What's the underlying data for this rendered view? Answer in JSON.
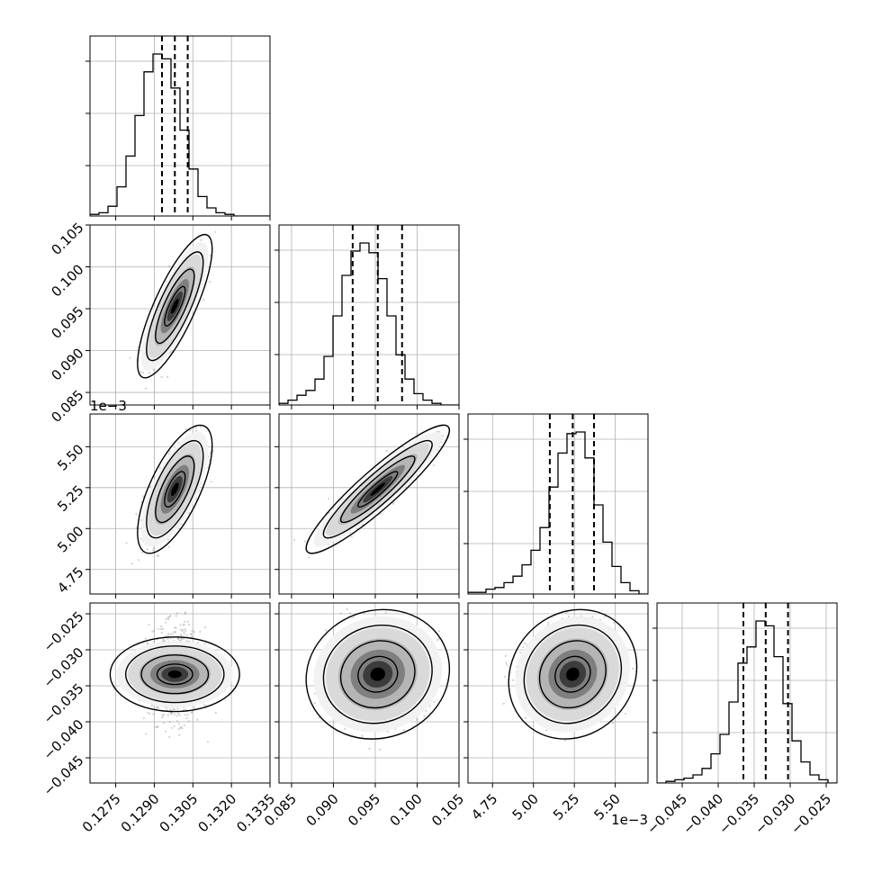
{
  "chart_data": {
    "type": "corner",
    "title": "",
    "parameters": [
      {
        "range": [
          0.1265,
          0.1335
        ],
        "median": 0.1298,
        "lower": 0.1293,
        "upper": 0.1303,
        "ticks": [
          0.1275,
          0.129,
          0.1305,
          0.132,
          0.1335
        ],
        "tick_labels": [
          "0.1275",
          "0.1290",
          "0.1305",
          "0.1320",
          "0.1335"
        ],
        "offset_label": ""
      },
      {
        "range": [
          0.0835,
          0.105
        ],
        "median": 0.0953,
        "lower": 0.0923,
        "upper": 0.0982,
        "ticks": [
          0.085,
          0.09,
          0.095,
          0.1,
          0.105
        ],
        "tick_labels": [
          "0.085",
          "0.090",
          "0.095",
          "0.100",
          "0.105"
        ],
        "offset_label": ""
      },
      {
        "range": [
          4.6,
          5.7
        ],
        "median": 5.24,
        "lower": 5.1,
        "upper": 5.37,
        "ticks": [
          4.75,
          5.0,
          5.25,
          5.5
        ],
        "tick_labels": [
          "4.75",
          "5.00",
          "5.25",
          "5.50"
        ],
        "offset_label": "1e−3"
      },
      {
        "range": [
          -0.0485,
          -0.0235
        ],
        "median": -0.0334,
        "lower": -0.0365,
        "upper": -0.0303,
        "ticks": [
          -0.045,
          -0.04,
          -0.035,
          -0.03,
          -0.025
        ],
        "tick_labels": [
          "−0.045",
          "−0.040",
          "−0.035",
          "−0.030",
          "−0.025"
        ],
        "offset_label": ""
      }
    ],
    "correlations": [
      {
        "i": 1,
        "j": 0,
        "rho": 0.8
      },
      {
        "i": 2,
        "j": 0,
        "rho": 0.68
      },
      {
        "i": 2,
        "j": 1,
        "rho": 0.92
      },
      {
        "i": 3,
        "j": 0,
        "rho": 0.0
      },
      {
        "i": 3,
        "j": 1,
        "rho": 0.08
      },
      {
        "i": 3,
        "j": 2,
        "rho": 0.12
      }
    ],
    "histograms": [
      {
        "param": 0,
        "heights": [
          0.01,
          0.02,
          0.06,
          0.18,
          0.37,
          0.62,
          0.89,
          1.0,
          0.97,
          0.79,
          0.53,
          0.29,
          0.12,
          0.05,
          0.02,
          0.01,
          0.0,
          0.0,
          0.0,
          0.0
        ]
      },
      {
        "param": 1,
        "heights": [
          0.01,
          0.03,
          0.06,
          0.09,
          0.16,
          0.3,
          0.55,
          0.8,
          0.95,
          1.0,
          0.94,
          0.78,
          0.55,
          0.31,
          0.16,
          0.07,
          0.03,
          0.01,
          0.0,
          0.0
        ]
      },
      {
        "param": 2,
        "heights": [
          0.01,
          0.01,
          0.03,
          0.04,
          0.07,
          0.11,
          0.18,
          0.27,
          0.41,
          0.66,
          0.87,
          0.99,
          1.0,
          0.84,
          0.55,
          0.32,
          0.17,
          0.07,
          0.02,
          0.0
        ]
      },
      {
        "param": 3,
        "heights": [
          0.0,
          0.01,
          0.02,
          0.03,
          0.05,
          0.09,
          0.18,
          0.3,
          0.5,
          0.74,
          0.84,
          1.0,
          0.97,
          0.78,
          0.49,
          0.26,
          0.13,
          0.05,
          0.02,
          0.0
        ]
      }
    ],
    "grid": true,
    "colors": {
      "line": "#000000",
      "scatter": "#9a9a9a",
      "grid": "#b0b0b0",
      "density": "#000000"
    }
  }
}
